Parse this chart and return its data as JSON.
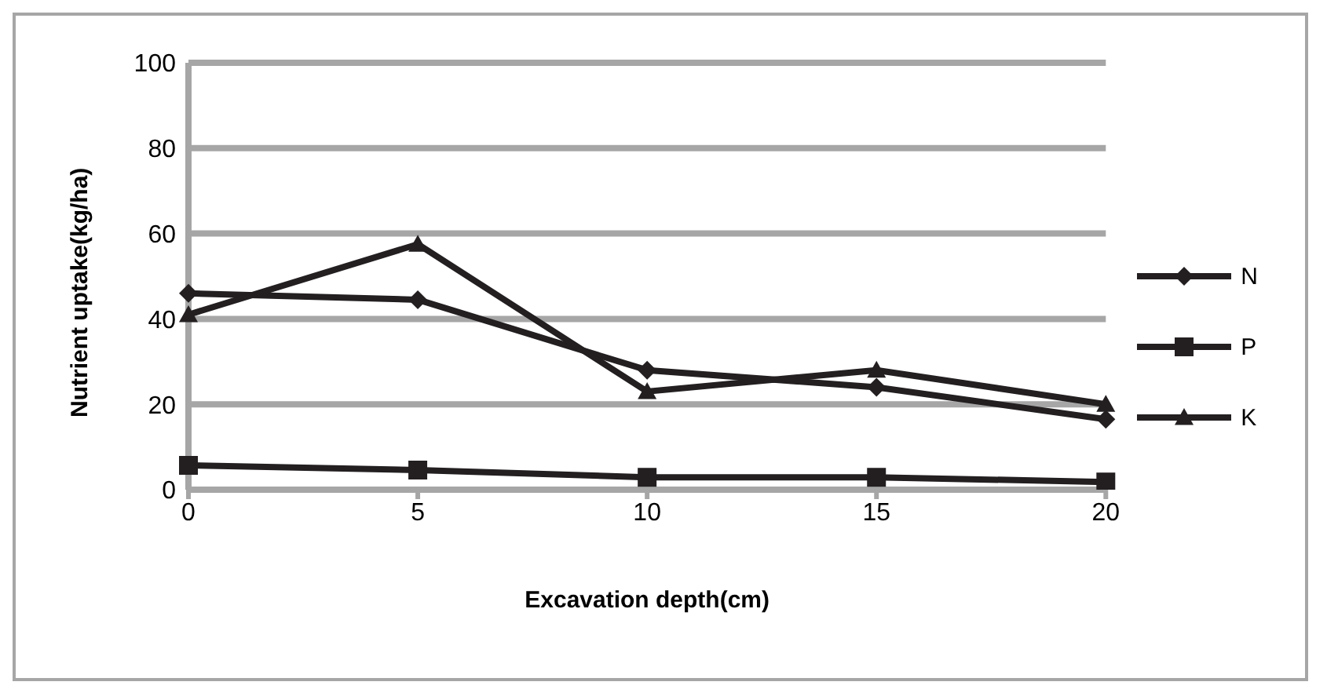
{
  "chart_data": {
    "type": "line",
    "xlabel": "Excavation depth(cm)",
    "ylabel": "Nutrient uptake(kg/ha)",
    "categories": [
      "0",
      "5",
      "10",
      "15",
      "20"
    ],
    "series": [
      {
        "name": "N",
        "color": "#231f20",
        "marker": "diamond",
        "values": [
          46,
          44.5,
          28,
          24,
          16.5
        ]
      },
      {
        "name": "P",
        "color": "#231f20",
        "marker": "square",
        "values": [
          5.7,
          4.6,
          2.9,
          2.9,
          1.8
        ]
      },
      {
        "name": "K",
        "color": "#231f20",
        "marker": "triangle",
        "values": [
          41,
          57.5,
          23,
          28,
          20
        ]
      }
    ],
    "ylim": [
      0,
      100
    ],
    "yticks": [
      0,
      20,
      40,
      60,
      80,
      100
    ],
    "grid": "y",
    "legend": "right"
  }
}
